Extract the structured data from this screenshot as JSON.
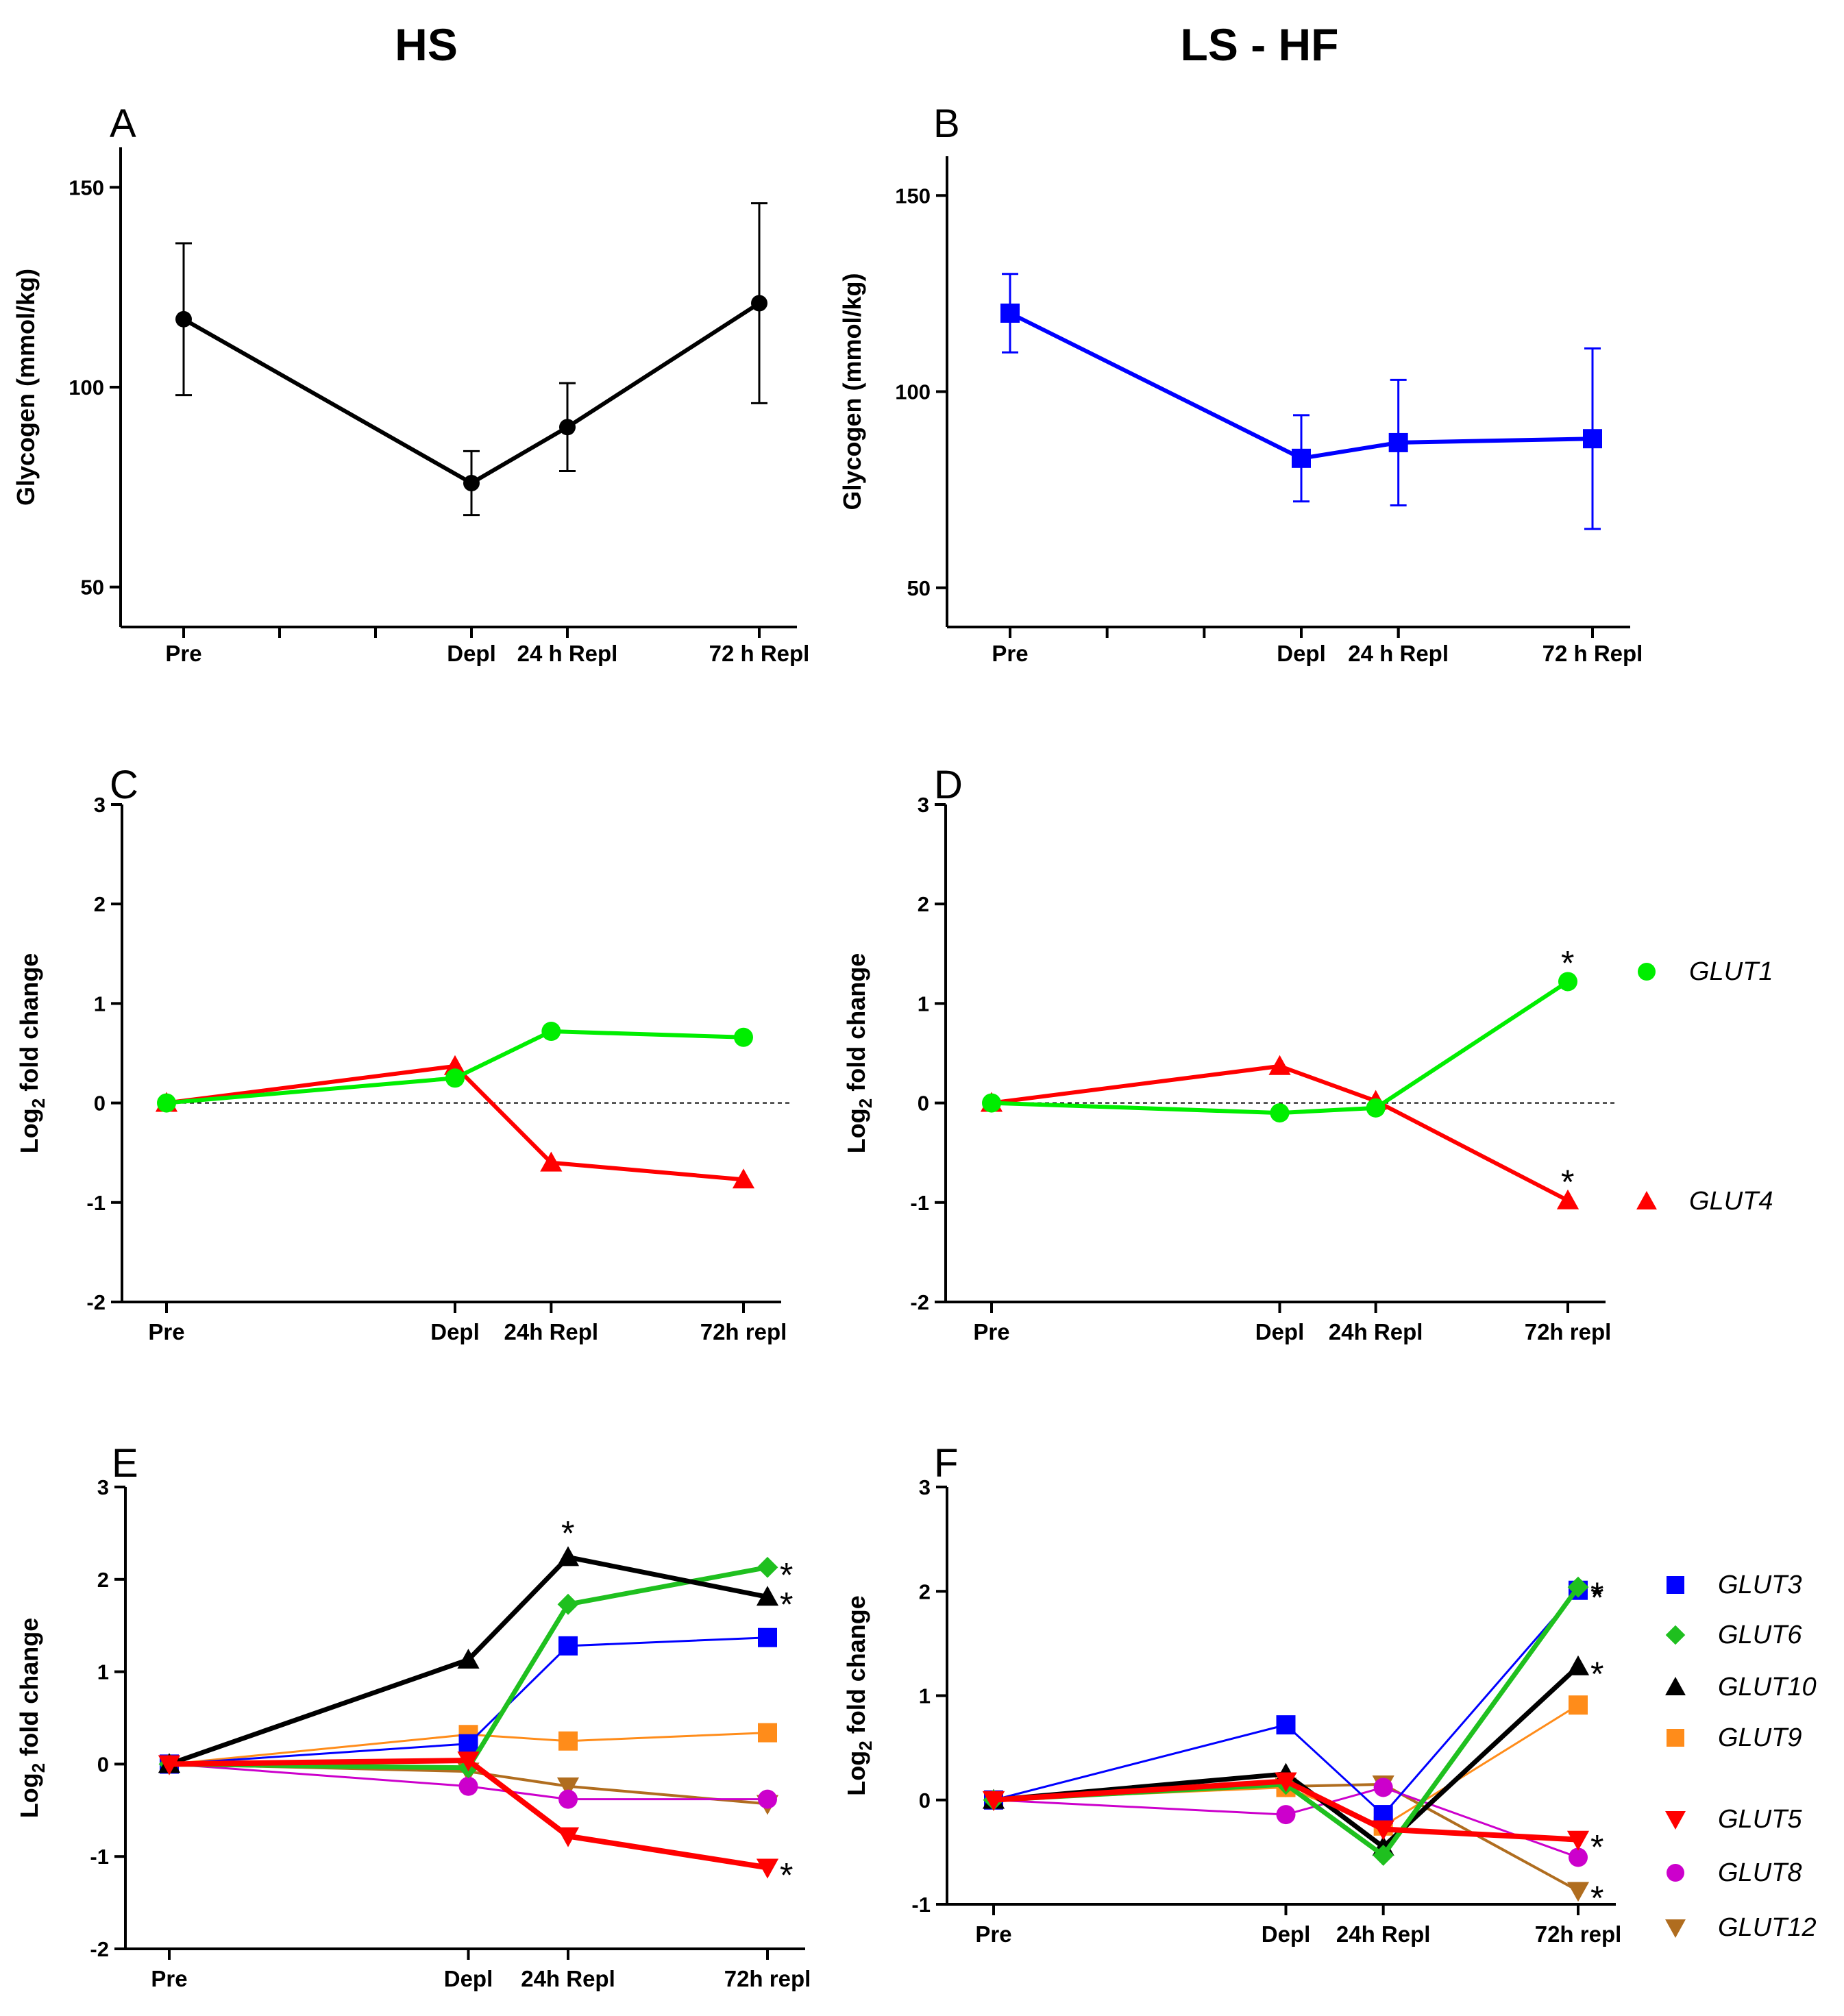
{
  "titles": {
    "left": "HS",
    "right": "LS - HF"
  },
  "chart_data": [
    {
      "id": "A",
      "letter": "A",
      "type": "line",
      "ylabel": "Glycogen (mmol/kg)",
      "ylim": [
        40,
        160
      ],
      "yticks": [
        50,
        100,
        150
      ],
      "xrange": [
        0,
        6
      ],
      "minor_ticks": [
        1,
        2,
        4
      ],
      "categories": [
        {
          "label": "Pre",
          "x": 0
        },
        {
          "label": "Depl",
          "x": 3
        },
        {
          "label": "24 h Repl",
          "x": 4
        },
        {
          "label": "72 h Repl",
          "x": 6
        }
      ],
      "reference_line": null,
      "series": [
        {
          "name": "Glycogen",
          "color": "#000000",
          "marker": "circle",
          "width": 6,
          "x": [
            0,
            3,
            4,
            6
          ],
          "values": [
            117,
            76,
            90,
            121
          ],
          "err": [
            19,
            8,
            11,
            25
          ],
          "stars": [
            null,
            null,
            null,
            null
          ]
        }
      ]
    },
    {
      "id": "B",
      "letter": "B",
      "type": "line",
      "ylabel": "Glycogen (mmol/kg)",
      "ylim": [
        40,
        160
      ],
      "yticks": [
        50,
        100,
        150
      ],
      "xrange": [
        0,
        6
      ],
      "minor_ticks": [
        1,
        2,
        4
      ],
      "categories": [
        {
          "label": "Pre",
          "x": 0
        },
        {
          "label": "Depl",
          "x": 3
        },
        {
          "label": "24 h Repl",
          "x": 4
        },
        {
          "label": "72 h Repl",
          "x": 6
        }
      ],
      "reference_line": null,
      "series": [
        {
          "name": "Glycogen",
          "color": "#0000ff",
          "marker": "square",
          "width": 6,
          "x": [
            0,
            3,
            4,
            6
          ],
          "values": [
            120,
            83,
            87,
            88
          ],
          "err": [
            10,
            11,
            16,
            23
          ],
          "stars": [
            null,
            null,
            null,
            null
          ]
        }
      ]
    },
    {
      "id": "C",
      "letter": "C",
      "type": "line",
      "ylabel": "Log2 fold change",
      "ylim": [
        -2,
        3
      ],
      "yticks": [
        -2,
        -1,
        0,
        1,
        2,
        3
      ],
      "xrange": [
        0,
        6
      ],
      "minor_ticks": [],
      "categories": [
        {
          "label": "Pre",
          "x": 0
        },
        {
          "label": "Depl",
          "x": 3
        },
        {
          "label": "24h Repl",
          "x": 4
        },
        {
          "label": "72h repl",
          "x": 6
        }
      ],
      "reference_line": 0,
      "series": [
        {
          "name": "GLUT4",
          "color": "#ff0000",
          "marker": "triangle",
          "width": 6,
          "x": [
            0,
            3,
            4,
            6
          ],
          "values": [
            0,
            0.37,
            -0.6,
            -0.77
          ],
          "stars": [
            null,
            null,
            null,
            null
          ]
        },
        {
          "name": "GLUT1",
          "color": "#00ee00",
          "marker": "circle",
          "width": 6,
          "x": [
            0,
            3,
            4,
            6
          ],
          "values": [
            0,
            0.25,
            0.72,
            0.66
          ],
          "stars": [
            null,
            null,
            null,
            null
          ]
        }
      ]
    },
    {
      "id": "D",
      "letter": "D",
      "type": "line",
      "ylabel": "Log2 fold change",
      "ylim": [
        -2,
        3
      ],
      "yticks": [
        -2,
        -1,
        0,
        1,
        2,
        3
      ],
      "xrange": [
        0,
        6
      ],
      "minor_ticks": [],
      "categories": [
        {
          "label": "Pre",
          "x": 0
        },
        {
          "label": "Depl",
          "x": 3
        },
        {
          "label": "24h Repl",
          "x": 4
        },
        {
          "label": "72h repl",
          "x": 6
        }
      ],
      "reference_line": 0,
      "series": [
        {
          "name": "GLUT4",
          "color": "#ff0000",
          "marker": "triangle",
          "width": 6,
          "x": [
            0,
            3,
            4,
            6
          ],
          "values": [
            0,
            0.37,
            0.02,
            -0.98
          ],
          "stars": [
            null,
            null,
            null,
            "*"
          ]
        },
        {
          "name": "GLUT1",
          "color": "#00ee00",
          "marker": "circle",
          "width": 6,
          "x": [
            0,
            3,
            4,
            6
          ],
          "values": [
            0,
            -0.1,
            -0.05,
            1.22
          ],
          "stars": [
            null,
            null,
            null,
            "*"
          ]
        }
      ],
      "legend": [
        {
          "name": "GLUT1",
          "color": "#00ee00",
          "marker": "circle"
        },
        {
          "name": "GLUT4",
          "color": "#ff0000",
          "marker": "triangle"
        }
      ]
    },
    {
      "id": "E",
      "letter": "E",
      "type": "line",
      "ylabel": "Log2 fold change",
      "ylim": [
        -2,
        3
      ],
      "yticks": [
        -2,
        -1,
        0,
        1,
        2,
        3
      ],
      "xrange": [
        0,
        6
      ],
      "minor_ticks": [],
      "categories": [
        {
          "label": "Pre",
          "x": 0
        },
        {
          "label": "Depl",
          "x": 3
        },
        {
          "label": "24h Repl",
          "x": 4
        },
        {
          "label": "72h repl",
          "x": 6
        }
      ],
      "reference_line": null,
      "series": [
        {
          "name": "GLUT12",
          "color": "#b06d1f",
          "marker": "triangle-down",
          "width": 4,
          "x": [
            0,
            3,
            4,
            6
          ],
          "values": [
            0,
            -0.08,
            -0.24,
            -0.43
          ],
          "stars": [
            null,
            null,
            null,
            null
          ]
        },
        {
          "name": "GLUT8",
          "color": "#cc00cc",
          "marker": "circle",
          "width": 3,
          "x": [
            0,
            3,
            4,
            6
          ],
          "values": [
            0,
            -0.24,
            -0.38,
            -0.38
          ],
          "stars": [
            null,
            null,
            null,
            null
          ]
        },
        {
          "name": "GLUT9",
          "color": "#ff8c1a",
          "marker": "square",
          "width": 3,
          "x": [
            0,
            3,
            4,
            6
          ],
          "values": [
            0,
            0.32,
            0.25,
            0.34
          ],
          "stars": [
            null,
            null,
            null,
            null
          ]
        },
        {
          "name": "GLUT3",
          "color": "#0000ff",
          "marker": "square",
          "width": 3,
          "x": [
            0,
            3,
            4,
            6
          ],
          "values": [
            0,
            0.22,
            1.28,
            1.37
          ],
          "stars": [
            null,
            null,
            null,
            null
          ]
        },
        {
          "name": "GLUT6",
          "color": "#1fc01f",
          "marker": "diamond",
          "width": 7,
          "x": [
            0,
            3,
            4,
            6
          ],
          "values": [
            0,
            -0.04,
            1.73,
            2.13
          ],
          "stars": [
            null,
            null,
            null,
            "*"
          ]
        },
        {
          "name": "GLUT10",
          "color": "#000000",
          "marker": "triangle",
          "width": 7,
          "x": [
            0,
            3,
            4,
            6
          ],
          "values": [
            0,
            1.13,
            2.24,
            1.81
          ],
          "stars": [
            null,
            null,
            "*",
            "*"
          ]
        },
        {
          "name": "GLUT5",
          "color": "#ff0000",
          "marker": "triangle-down",
          "width": 8,
          "x": [
            0,
            3,
            4,
            6
          ],
          "values": [
            0,
            0.04,
            -0.78,
            -1.12
          ],
          "stars": [
            null,
            null,
            null,
            "*"
          ]
        }
      ]
    },
    {
      "id": "F",
      "letter": "F",
      "type": "line",
      "ylabel": "Log2 fold change",
      "ylim": [
        -1,
        3
      ],
      "yticks": [
        -1,
        0,
        1,
        2,
        3
      ],
      "xrange": [
        0,
        6
      ],
      "minor_ticks": [],
      "categories": [
        {
          "label": "Pre",
          "x": 0
        },
        {
          "label": "Depl",
          "x": 3
        },
        {
          "label": "24h Repl",
          "x": 4
        },
        {
          "label": "72h repl",
          "x": 6
        }
      ],
      "reference_line": null,
      "series": [
        {
          "name": "GLUT12",
          "color": "#b06d1f",
          "marker": "triangle-down",
          "width": 4,
          "x": [
            0,
            3,
            4,
            6
          ],
          "values": [
            0,
            0.13,
            0.15,
            -0.87
          ],
          "stars": [
            null,
            null,
            null,
            "*"
          ]
        },
        {
          "name": "GLUT8",
          "color": "#cc00cc",
          "marker": "circle",
          "width": 3,
          "x": [
            0,
            3,
            4,
            6
          ],
          "values": [
            0,
            -0.14,
            0.12,
            -0.55
          ],
          "stars": [
            null,
            null,
            null,
            null
          ]
        },
        {
          "name": "GLUT9",
          "color": "#ff8c1a",
          "marker": "square",
          "width": 3,
          "x": [
            0,
            3,
            4,
            6
          ],
          "values": [
            0,
            0.12,
            -0.25,
            0.91
          ],
          "stars": [
            null,
            null,
            null,
            null
          ]
        },
        {
          "name": "GLUT3",
          "color": "#0000ff",
          "marker": "square",
          "width": 3,
          "x": [
            0,
            3,
            4,
            6
          ],
          "values": [
            0,
            0.72,
            -0.14,
            2.01
          ],
          "stars": [
            null,
            null,
            null,
            "*"
          ]
        },
        {
          "name": "GLUT10",
          "color": "#000000",
          "marker": "triangle",
          "width": 7,
          "x": [
            0,
            3,
            4,
            6
          ],
          "values": [
            0,
            0.25,
            -0.45,
            1.28
          ],
          "stars": [
            null,
            null,
            null,
            "*"
          ]
        },
        {
          "name": "GLUT6",
          "color": "#1fc01f",
          "marker": "diamond",
          "width": 7,
          "x": [
            0,
            3,
            4,
            6
          ],
          "values": [
            0,
            0.15,
            -0.53,
            2.04
          ],
          "stars": [
            null,
            null,
            null,
            "*"
          ]
        },
        {
          "name": "GLUT5",
          "color": "#ff0000",
          "marker": "triangle-down",
          "width": 8,
          "x": [
            0,
            3,
            4,
            6
          ],
          "values": [
            0,
            0.18,
            -0.28,
            -0.38
          ],
          "stars": [
            null,
            null,
            null,
            "*"
          ]
        }
      ],
      "legend": [
        {
          "name": "GLUT3",
          "color": "#0000ff",
          "marker": "square"
        },
        {
          "name": "GLUT6",
          "color": "#1fc01f",
          "marker": "diamond"
        },
        {
          "name": "GLUT10",
          "color": "#000000",
          "marker": "triangle"
        },
        {
          "name": "GLUT9",
          "color": "#ff8c1a",
          "marker": "square"
        },
        {
          "name": "GLUT5",
          "color": "#ff0000",
          "marker": "triangle-down"
        },
        {
          "name": "GLUT8",
          "color": "#cc00cc",
          "marker": "circle"
        },
        {
          "name": "GLUT12",
          "color": "#b06d1f",
          "marker": "triangle-down"
        }
      ]
    }
  ]
}
